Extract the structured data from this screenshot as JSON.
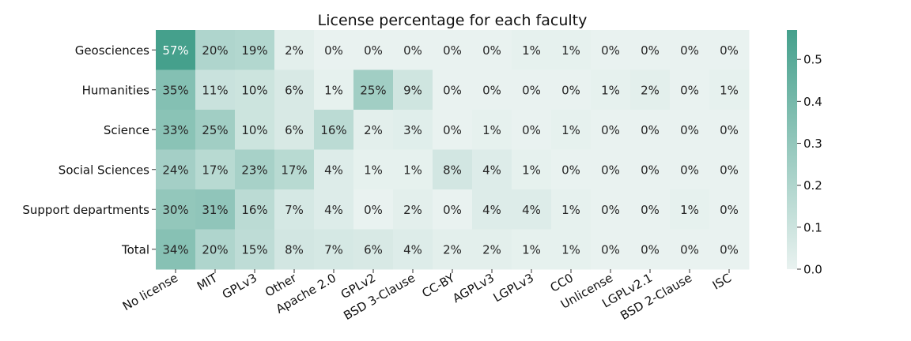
{
  "chart_data": {
    "type": "heatmap",
    "title": "License percentage for each faculty",
    "rows": [
      "Geosciences",
      "Humanities",
      "Science",
      "Social Sciences",
      "Support departments",
      "Total"
    ],
    "columns": [
      "No license",
      "MIT",
      "GPLv3",
      "Other",
      "Apache 2.0",
      "GPLv2",
      "BSD 3-Clause",
      "CC-BY",
      "AGPLv3",
      "LGPLv3",
      "CC0",
      "Unlicense",
      "LGPLv2.1",
      "BSD 2-Clause",
      "ISC"
    ],
    "values": [
      [
        0.57,
        0.2,
        0.19,
        0.02,
        0.0,
        0.0,
        0.0,
        0.0,
        0.0,
        0.01,
        0.01,
        0.0,
        0.0,
        0.0,
        0.0
      ],
      [
        0.35,
        0.11,
        0.1,
        0.06,
        0.01,
        0.25,
        0.09,
        0.0,
        0.0,
        0.0,
        0.0,
        0.01,
        0.02,
        0.0,
        0.01
      ],
      [
        0.33,
        0.25,
        0.1,
        0.06,
        0.16,
        0.02,
        0.03,
        0.0,
        0.01,
        0.0,
        0.01,
        0.0,
        0.0,
        0.0,
        0.0
      ],
      [
        0.24,
        0.17,
        0.23,
        0.17,
        0.04,
        0.01,
        0.01,
        0.08,
        0.04,
        0.01,
        0.0,
        0.0,
        0.0,
        0.0,
        0.0
      ],
      [
        0.3,
        0.31,
        0.16,
        0.07,
        0.04,
        0.0,
        0.02,
        0.0,
        0.04,
        0.04,
        0.01,
        0.0,
        0.0,
        0.01,
        0.0
      ],
      [
        0.34,
        0.2,
        0.15,
        0.08,
        0.07,
        0.06,
        0.04,
        0.02,
        0.02,
        0.01,
        0.01,
        0.0,
        0.0,
        0.0,
        0.0
      ]
    ],
    "cell_labels": [
      [
        "57%",
        "20%",
        "19%",
        "2%",
        "0%",
        "0%",
        "0%",
        "0%",
        "0%",
        "1%",
        "1%",
        "0%",
        "0%",
        "0%",
        "0%"
      ],
      [
        "35%",
        "11%",
        "10%",
        "6%",
        "1%",
        "25%",
        "9%",
        "0%",
        "0%",
        "0%",
        "0%",
        "1%",
        "2%",
        "0%",
        "1%"
      ],
      [
        "33%",
        "25%",
        "10%",
        "6%",
        "16%",
        "2%",
        "3%",
        "0%",
        "1%",
        "0%",
        "1%",
        "0%",
        "0%",
        "0%",
        "0%"
      ],
      [
        "24%",
        "17%",
        "23%",
        "17%",
        "4%",
        "1%",
        "1%",
        "8%",
        "4%",
        "1%",
        "0%",
        "0%",
        "0%",
        "0%",
        "0%"
      ],
      [
        "30%",
        "31%",
        "16%",
        "7%",
        "4%",
        "0%",
        "2%",
        "0%",
        "4%",
        "4%",
        "1%",
        "0%",
        "0%",
        "1%",
        "0%"
      ],
      [
        "34%",
        "20%",
        "15%",
        "8%",
        "7%",
        "6%",
        "4%",
        "2%",
        "2%",
        "1%",
        "1%",
        "0%",
        "0%",
        "0%",
        "0%"
      ]
    ],
    "color_range": [
      0.0,
      0.57
    ],
    "colorbar_ticks": [
      "0.0",
      "0.1",
      "0.2",
      "0.3",
      "0.4",
      "0.5"
    ],
    "colors": {
      "low": "#e9f2f0",
      "high": "#45a08c",
      "text_dark": "#262626",
      "text_light": "#ffffff"
    },
    "xlabel": "",
    "ylabel": ""
  }
}
